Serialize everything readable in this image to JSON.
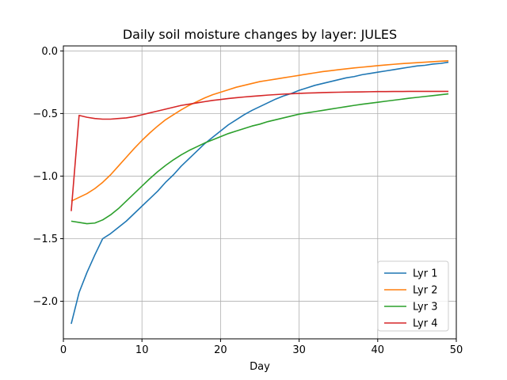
{
  "chart_data": {
    "type": "line",
    "title": "Daily soil moisture changes by layer: JULES",
    "xlabel": "Day",
    "ylabel": "",
    "xlim": [
      0,
      50
    ],
    "ylim": [
      -2.3,
      0.04
    ],
    "xticks": [
      0,
      10,
      20,
      30,
      40,
      50
    ],
    "xtick_labels": [
      "0",
      "10",
      "20",
      "30",
      "40",
      "50"
    ],
    "yticks": [
      0.0,
      -0.5,
      -1.0,
      -1.5,
      -2.0
    ],
    "ytick_labels": [
      "0.0",
      "−0.5",
      "−1.0",
      "−1.5",
      "−2.0"
    ],
    "grid": true,
    "legend_position": "lower-right",
    "x": [
      1,
      2,
      3,
      4,
      5,
      6,
      7,
      8,
      9,
      10,
      11,
      12,
      13,
      14,
      15,
      16,
      17,
      18,
      19,
      20,
      21,
      22,
      23,
      24,
      25,
      26,
      27,
      28,
      29,
      30,
      31,
      32,
      33,
      34,
      35,
      36,
      37,
      38,
      39,
      40,
      41,
      42,
      43,
      44,
      45,
      46,
      47,
      48,
      49
    ],
    "series": [
      {
        "name": "Lyr 1",
        "color": "#1f77b4",
        "values": [
          -2.18,
          -1.93,
          -1.77,
          -1.63,
          -1.5,
          -1.46,
          -1.41,
          -1.36,
          -1.3,
          -1.24,
          -1.18,
          -1.12,
          -1.05,
          -0.99,
          -0.92,
          -0.86,
          -0.8,
          -0.74,
          -0.69,
          -0.64,
          -0.59,
          -0.55,
          -0.51,
          -0.475,
          -0.445,
          -0.415,
          -0.385,
          -0.36,
          -0.34,
          -0.315,
          -0.295,
          -0.275,
          -0.26,
          -0.245,
          -0.23,
          -0.215,
          -0.205,
          -0.19,
          -0.18,
          -0.17,
          -0.16,
          -0.15,
          -0.14,
          -0.13,
          -0.12,
          -0.115,
          -0.105,
          -0.1,
          -0.09
        ]
      },
      {
        "name": "Lyr 2",
        "color": "#ff7f0e",
        "values": [
          -1.2,
          -1.17,
          -1.14,
          -1.1,
          -1.05,
          -0.99,
          -0.92,
          -0.85,
          -0.78,
          -0.715,
          -0.655,
          -0.6,
          -0.55,
          -0.51,
          -0.47,
          -0.435,
          -0.405,
          -0.375,
          -0.35,
          -0.33,
          -0.31,
          -0.29,
          -0.275,
          -0.26,
          -0.245,
          -0.235,
          -0.225,
          -0.215,
          -0.205,
          -0.195,
          -0.185,
          -0.175,
          -0.165,
          -0.158,
          -0.15,
          -0.143,
          -0.136,
          -0.13,
          -0.124,
          -0.118,
          -0.112,
          -0.107,
          -0.102,
          -0.098,
          -0.094,
          -0.09,
          -0.086,
          -0.082,
          -0.079
        ]
      },
      {
        "name": "Lyr 3",
        "color": "#2ca02c",
        "values": [
          -1.36,
          -1.37,
          -1.38,
          -1.375,
          -1.35,
          -1.31,
          -1.26,
          -1.2,
          -1.14,
          -1.08,
          -1.02,
          -0.965,
          -0.915,
          -0.87,
          -0.83,
          -0.795,
          -0.765,
          -0.735,
          -0.71,
          -0.685,
          -0.66,
          -0.64,
          -0.62,
          -0.6,
          -0.585,
          -0.565,
          -0.55,
          -0.535,
          -0.52,
          -0.505,
          -0.495,
          -0.485,
          -0.475,
          -0.465,
          -0.455,
          -0.445,
          -0.435,
          -0.426,
          -0.418,
          -0.41,
          -0.402,
          -0.394,
          -0.386,
          -0.378,
          -0.371,
          -0.364,
          -0.357,
          -0.35,
          -0.343
        ]
      },
      {
        "name": "Lyr 4",
        "color": "#d62728",
        "values": [
          -1.28,
          -0.515,
          -0.53,
          -0.54,
          -0.545,
          -0.545,
          -0.54,
          -0.535,
          -0.525,
          -0.51,
          -0.495,
          -0.48,
          -0.465,
          -0.45,
          -0.435,
          -0.425,
          -0.415,
          -0.405,
          -0.395,
          -0.388,
          -0.38,
          -0.374,
          -0.368,
          -0.363,
          -0.358,
          -0.353,
          -0.349,
          -0.345,
          -0.342,
          -0.339,
          -0.337,
          -0.335,
          -0.333,
          -0.331,
          -0.33,
          -0.329,
          -0.328,
          -0.327,
          -0.326,
          -0.325,
          -0.325,
          -0.324,
          -0.324,
          -0.323,
          -0.323,
          -0.323,
          -0.323,
          -0.323,
          -0.323
        ]
      }
    ]
  }
}
